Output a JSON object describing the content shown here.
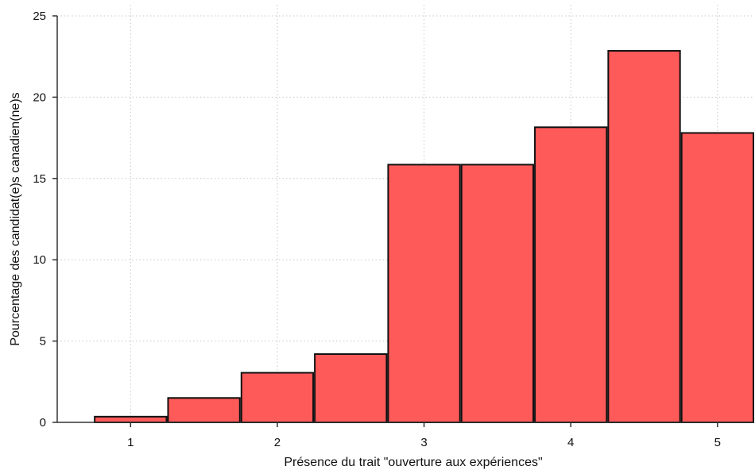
{
  "chart_data": {
    "type": "bar",
    "title": "",
    "xlabel": "Présence du trait \"ouverture aux expériences\"",
    "ylabel": "Pourcentage des candidat(e)s canadien(ne)s",
    "bin_width": 0.5,
    "bins": [
      {
        "center": 1.0,
        "value": 0.35
      },
      {
        "center": 1.5,
        "value": 1.5
      },
      {
        "center": 2.0,
        "value": 3.05
      },
      {
        "center": 2.5,
        "value": 4.2
      },
      {
        "center": 3.0,
        "value": 15.85
      },
      {
        "center": 3.5,
        "value": 15.85
      },
      {
        "center": 4.0,
        "value": 18.15
      },
      {
        "center": 4.5,
        "value": 22.85
      },
      {
        "center": 5.0,
        "value": 17.8
      }
    ],
    "xticks": [
      "1",
      "2",
      "3",
      "4",
      "5"
    ],
    "xtick_values": [
      1,
      2,
      3,
      4,
      5
    ],
    "yticks": [
      "0",
      "5",
      "10",
      "15",
      "20",
      "25"
    ],
    "ytick_values": [
      0,
      5,
      10,
      15,
      20,
      25
    ],
    "xlim": [
      0.5,
      5.25
    ],
    "ylim": [
      0,
      25
    ],
    "grid": true,
    "legend": "none",
    "colors": {
      "bar_fill": "#ff5a5a",
      "bar_stroke": "#111111",
      "grid": "#c8c8c8",
      "axis": "#333333"
    }
  }
}
